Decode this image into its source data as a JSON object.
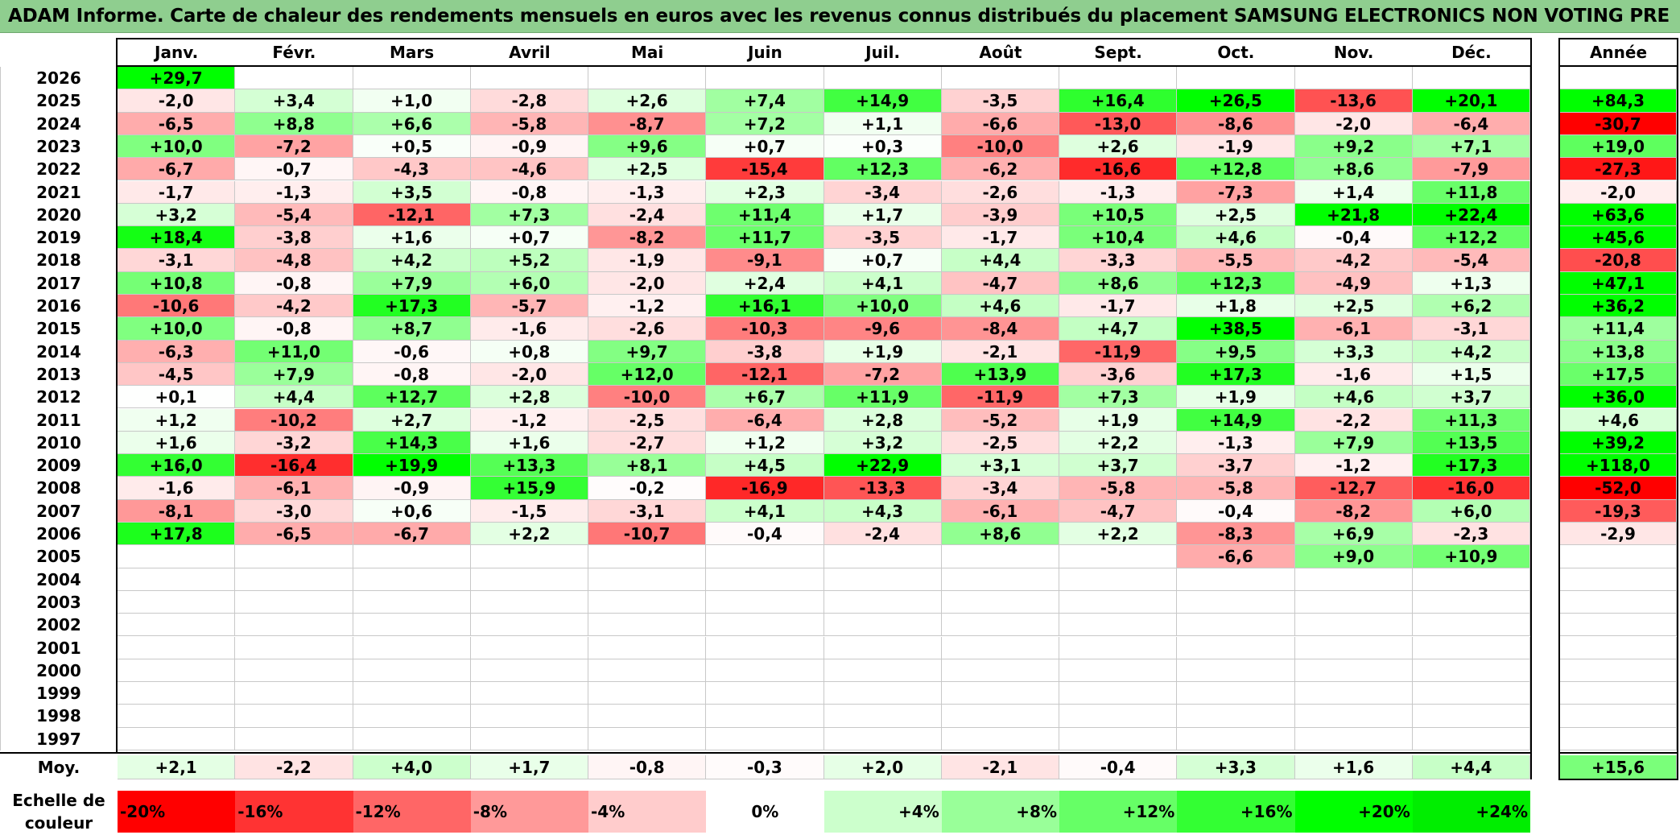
{
  "title": "ADAM Informe. Carte de chaleur des rendements mensuels en euros avec les revenus connus distribués du placement SAMSUNG ELECTRONICS NON VOTING PRE",
  "chart_data": {
    "type": "heatmap",
    "months": [
      "Janv.",
      "Févr.",
      "Mars",
      "Avril",
      "Mai",
      "Juin",
      "Juil.",
      "Août",
      "Sept.",
      "Oct.",
      "Nov.",
      "Déc."
    ],
    "year_header": "Année",
    "rows": [
      {
        "year": "2026",
        "values": [
          "+29,7",
          "",
          "",
          "",
          "",
          "",
          "",
          "",
          "",
          "",
          "",
          ""
        ],
        "annual": ""
      },
      {
        "year": "2025",
        "values": [
          "-2,0",
          "+3,4",
          "+1,0",
          "-2,8",
          "+2,6",
          "+7,4",
          "+14,9",
          "-3,5",
          "+16,4",
          "+26,5",
          "-13,6",
          "+20,1"
        ],
        "annual": "+84,3"
      },
      {
        "year": "2024",
        "values": [
          "-6,5",
          "+8,8",
          "+6,6",
          "-5,8",
          "-8,7",
          "+7,2",
          "+1,1",
          "-6,6",
          "-13,0",
          "-8,6",
          "-2,0",
          "-6,4"
        ],
        "annual": "-30,7"
      },
      {
        "year": "2023",
        "values": [
          "+10,0",
          "-7,2",
          "+0,5",
          "-0,9",
          "+9,6",
          "+0,7",
          "+0,3",
          "-10,0",
          "+2,6",
          "-1,9",
          "+9,2",
          "+7,1"
        ],
        "annual": "+19,0"
      },
      {
        "year": "2022",
        "values": [
          "-6,7",
          "-0,7",
          "-4,3",
          "-4,6",
          "+2,5",
          "-15,4",
          "+12,3",
          "-6,2",
          "-16,6",
          "+12,8",
          "+8,6",
          "-7,9"
        ],
        "annual": "-27,3"
      },
      {
        "year": "2021",
        "values": [
          "-1,7",
          "-1,3",
          "+3,5",
          "-0,8",
          "-1,3",
          "+2,3",
          "-3,4",
          "-2,6",
          "-1,3",
          "-7,3",
          "+1,4",
          "+11,8"
        ],
        "annual": "-2,0"
      },
      {
        "year": "2020",
        "values": [
          "+3,2",
          "-5,4",
          "-12,1",
          "+7,3",
          "-2,4",
          "+11,4",
          "+1,7",
          "-3,9",
          "+10,5",
          "+2,5",
          "+21,8",
          "+22,4"
        ],
        "annual": "+63,6"
      },
      {
        "year": "2019",
        "values": [
          "+18,4",
          "-3,8",
          "+1,6",
          "+0,7",
          "-8,2",
          "+11,7",
          "-3,5",
          "-1,7",
          "+10,4",
          "+4,6",
          "-0,4",
          "+12,2"
        ],
        "annual": "+45,6"
      },
      {
        "year": "2018",
        "values": [
          "-3,1",
          "-4,8",
          "+4,2",
          "+5,2",
          "-1,9",
          "-9,1",
          "+0,7",
          "+4,4",
          "-3,3",
          "-5,5",
          "-4,2",
          "-5,4"
        ],
        "annual": "-20,8"
      },
      {
        "year": "2017",
        "values": [
          "+10,8",
          "-0,8",
          "+7,9",
          "+6,0",
          "-2,0",
          "+2,4",
          "+4,1",
          "-4,7",
          "+8,6",
          "+12,3",
          "-4,9",
          "+1,3"
        ],
        "annual": "+47,1"
      },
      {
        "year": "2016",
        "values": [
          "-10,6",
          "-4,2",
          "+17,3",
          "-5,7",
          "-1,2",
          "+16,1",
          "+10,0",
          "+4,6",
          "-1,7",
          "+1,8",
          "+2,5",
          "+6,2"
        ],
        "annual": "+36,2"
      },
      {
        "year": "2015",
        "values": [
          "+10,0",
          "-0,8",
          "+8,7",
          "-1,6",
          "-2,6",
          "-10,3",
          "-9,6",
          "-8,4",
          "+4,7",
          "+38,5",
          "-6,1",
          "-3,1"
        ],
        "annual": "+11,4"
      },
      {
        "year": "2014",
        "values": [
          "-6,3",
          "+11,0",
          "-0,6",
          "+0,8",
          "+9,7",
          "-3,8",
          "+1,9",
          "-2,1",
          "-11,9",
          "+9,5",
          "+3,3",
          "+4,2"
        ],
        "annual": "+13,8"
      },
      {
        "year": "2013",
        "values": [
          "-4,5",
          "+7,9",
          "-0,8",
          "-2,0",
          "+12,0",
          "-12,1",
          "-7,2",
          "+13,9",
          "-3,6",
          "+17,3",
          "-1,6",
          "+1,5"
        ],
        "annual": "+17,5"
      },
      {
        "year": "2012",
        "values": [
          "+0,1",
          "+4,4",
          "+12,7",
          "+2,8",
          "-10,0",
          "+6,7",
          "+11,9",
          "-11,9",
          "+7,3",
          "+1,9",
          "+4,6",
          "+3,7"
        ],
        "annual": "+36,0"
      },
      {
        "year": "2011",
        "values": [
          "+1,2",
          "-10,2",
          "+2,7",
          "-1,2",
          "-2,5",
          "-6,4",
          "+2,8",
          "-5,2",
          "+1,9",
          "+14,9",
          "-2,2",
          "+11,3"
        ],
        "annual": "+4,6"
      },
      {
        "year": "2010",
        "values": [
          "+1,6",
          "-3,2",
          "+14,3",
          "+1,6",
          "-2,7",
          "+1,2",
          "+3,2",
          "-2,5",
          "+2,2",
          "-1,3",
          "+7,9",
          "+13,5"
        ],
        "annual": "+39,2"
      },
      {
        "year": "2009",
        "values": [
          "+16,0",
          "-16,4",
          "+19,9",
          "+13,3",
          "+8,1",
          "+4,5",
          "+22,9",
          "+3,1",
          "+3,7",
          "-3,7",
          "-1,2",
          "+17,3"
        ],
        "annual": "+118,0"
      },
      {
        "year": "2008",
        "values": [
          "-1,6",
          "-6,1",
          "-0,9",
          "+15,9",
          "-0,2",
          "-16,9",
          "-13,3",
          "-3,4",
          "-5,8",
          "-5,8",
          "-12,7",
          "-16,0"
        ],
        "annual": "-52,0"
      },
      {
        "year": "2007",
        "values": [
          "-8,1",
          "-3,0",
          "+0,6",
          "-1,5",
          "-3,1",
          "+4,1",
          "+4,3",
          "-6,1",
          "-4,7",
          "-0,4",
          "-8,2",
          "+6,0"
        ],
        "annual": "-19,3"
      },
      {
        "year": "2006",
        "values": [
          "+17,8",
          "-6,5",
          "-6,7",
          "+2,2",
          "-10,7",
          "-0,4",
          "-2,4",
          "+8,6",
          "+2,2",
          "-8,3",
          "+6,9",
          "-2,3"
        ],
        "annual": "-2,9"
      },
      {
        "year": "2005",
        "values": [
          "",
          "",
          "",
          "",
          "",
          "",
          "",
          "",
          "",
          "-6,6",
          "+9,0",
          "+10,9"
        ],
        "annual": ""
      },
      {
        "year": "2004",
        "values": [
          "",
          "",
          "",
          "",
          "",
          "",
          "",
          "",
          "",
          "",
          "",
          ""
        ],
        "annual": ""
      },
      {
        "year": "2003",
        "values": [
          "",
          "",
          "",
          "",
          "",
          "",
          "",
          "",
          "",
          "",
          "",
          ""
        ],
        "annual": ""
      },
      {
        "year": "2002",
        "values": [
          "",
          "",
          "",
          "",
          "",
          "",
          "",
          "",
          "",
          "",
          "",
          ""
        ],
        "annual": ""
      },
      {
        "year": "2001",
        "values": [
          "",
          "",
          "",
          "",
          "",
          "",
          "",
          "",
          "",
          "",
          "",
          ""
        ],
        "annual": ""
      },
      {
        "year": "2000",
        "values": [
          "",
          "",
          "",
          "",
          "",
          "",
          "",
          "",
          "",
          "",
          "",
          ""
        ],
        "annual": ""
      },
      {
        "year": "1999",
        "values": [
          "",
          "",
          "",
          "",
          "",
          "",
          "",
          "",
          "",
          "",
          "",
          ""
        ],
        "annual": ""
      },
      {
        "year": "1998",
        "values": [
          "",
          "",
          "",
          "",
          "",
          "",
          "",
          "",
          "",
          "",
          "",
          ""
        ],
        "annual": ""
      },
      {
        "year": "1997",
        "values": [
          "",
          "",
          "",
          "",
          "",
          "",
          "",
          "",
          "",
          "",
          "",
          ""
        ],
        "annual": ""
      }
    ],
    "average": {
      "label": "Moy.",
      "values": [
        "+2,1",
        "-2,2",
        "+4,0",
        "+1,7",
        "-0,8",
        "-0,3",
        "+2,0",
        "-2,1",
        "-0,4",
        "+3,3",
        "+1,6",
        "+4,4"
      ],
      "annual": "+15,6"
    },
    "color_scale": {
      "label": "Echelle de couleur",
      "steps": [
        {
          "label": "-20%",
          "color": "#ff0000"
        },
        {
          "label": "-16%",
          "color": "#ff3333"
        },
        {
          "label": "-12%",
          "color": "#ff6666"
        },
        {
          "label": "-8%",
          "color": "#ff9999"
        },
        {
          "label": "-4%",
          "color": "#ffcccc"
        },
        {
          "label": "0%",
          "color": "#ffffff"
        },
        {
          "label": "+4%",
          "color": "#ccffcc"
        },
        {
          "label": "+8%",
          "color": "#99ff99"
        },
        {
          "label": "+12%",
          "color": "#66ff66"
        },
        {
          "label": "+16%",
          "color": "#33ff33"
        },
        {
          "label": "+20%",
          "color": "#00ff00"
        },
        {
          "label": "+24%",
          "color": "#00ee00"
        }
      ]
    }
  }
}
